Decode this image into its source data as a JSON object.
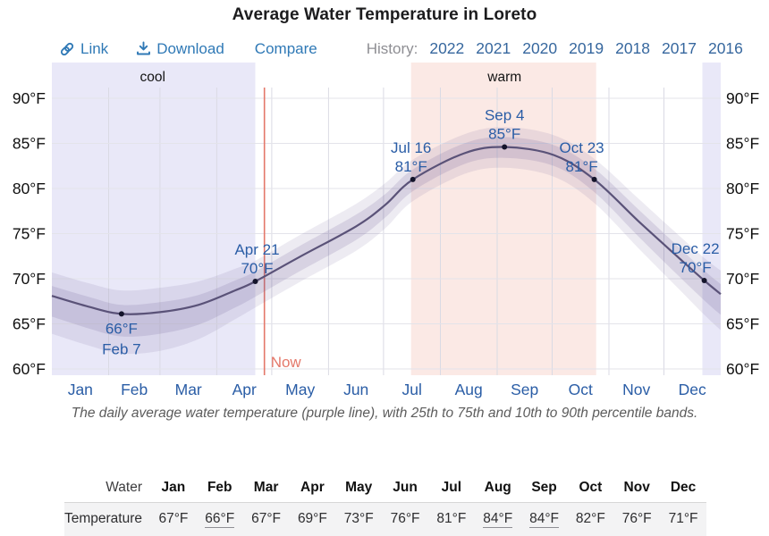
{
  "header": {
    "title": "Average Water Temperature in Loreto"
  },
  "toolbar": {
    "link": "Link",
    "download": "Download",
    "compare": "Compare",
    "history_label": "History:",
    "years": [
      "2022",
      "2021",
      "2020",
      "2019",
      "2018",
      "2017",
      "2016"
    ]
  },
  "chart_data": {
    "type": "line",
    "title": "Average Water Temperature in Loreto",
    "unit": "°F",
    "y_axis": {
      "min": 60,
      "max": 90,
      "step": 5,
      "tick_labels": [
        "90°F",
        "85°F",
        "80°F",
        "75°F",
        "70°F",
        "65°F",
        "60°F"
      ]
    },
    "x_axis": {
      "months": [
        "Jan",
        "Feb",
        "Mar",
        "Apr",
        "May",
        "Jun",
        "Jul",
        "Aug",
        "Sep",
        "Oct",
        "Nov",
        "Dec"
      ]
    },
    "monthly_mean_f": [
      67,
      66,
      67,
      69,
      73,
      76,
      81,
      84,
      84,
      82,
      76,
      71
    ],
    "regions": [
      {
        "kind": "cool",
        "start_day": 0,
        "end_day": 111
      },
      {
        "kind": "warm",
        "start_day": 196,
        "end_day": 297
      },
      {
        "kind": "cool",
        "start_day": 355,
        "end_day": 365
      }
    ],
    "region_labels": [
      {
        "text": "cool",
        "day": 55
      },
      {
        "text": "warm",
        "day": 247
      }
    ],
    "now_marker": {
      "label": "Now",
      "day": 116
    },
    "series": [
      {
        "name": "daily average water temperature",
        "points": [
          {
            "d": 0,
            "t": 68.1,
            "ih": 1.1,
            "il": 2.3,
            "oh": 2.6,
            "ol": 4.2
          },
          {
            "d": 20,
            "t": 66.9,
            "ih": 1.1,
            "il": 2.4,
            "oh": 2.6,
            "ol": 4.3
          },
          {
            "d": 38,
            "t": 66.1,
            "ih": 1.0,
            "il": 2.5,
            "oh": 2.6,
            "ol": 4.4
          },
          {
            "d": 59,
            "t": 66.3,
            "ih": 1.1,
            "il": 2.4,
            "oh": 2.7,
            "ol": 4.3
          },
          {
            "d": 80,
            "t": 67.1,
            "ih": 1.1,
            "il": 2.2,
            "oh": 2.6,
            "ol": 3.8
          },
          {
            "d": 100,
            "t": 68.7,
            "ih": 1.1,
            "il": 1.9,
            "oh": 2.4,
            "ol": 3.2
          },
          {
            "d": 111,
            "t": 69.7,
            "ih": 1.1,
            "il": 1.7,
            "oh": 2.3,
            "ol": 2.9
          },
          {
            "d": 135,
            "t": 72.4,
            "ih": 1.2,
            "il": 1.6,
            "oh": 2.4,
            "ol": 2.8
          },
          {
            "d": 166,
            "t": 75.8,
            "ih": 1.3,
            "il": 1.5,
            "oh": 2.5,
            "ol": 2.7
          },
          {
            "d": 182,
            "t": 78.2,
            "ih": 1.2,
            "il": 1.4,
            "oh": 2.4,
            "ol": 2.6
          },
          {
            "d": 197,
            "t": 81.0,
            "ih": 1.1,
            "il": 1.3,
            "oh": 2.2,
            "ol": 2.4
          },
          {
            "d": 225,
            "t": 83.9,
            "ih": 1.1,
            "il": 1.2,
            "oh": 2.1,
            "ol": 2.3
          },
          {
            "d": 247,
            "t": 84.6,
            "ih": 1.1,
            "il": 1.2,
            "oh": 2.2,
            "ol": 2.3
          },
          {
            "d": 274,
            "t": 83.7,
            "ih": 1.1,
            "il": 1.2,
            "oh": 2.2,
            "ol": 2.4
          },
          {
            "d": 296,
            "t": 81.0,
            "ih": 1.2,
            "il": 1.4,
            "oh": 2.3,
            "ol": 2.6
          },
          {
            "d": 320,
            "t": 76.4,
            "ih": 1.3,
            "il": 1.7,
            "oh": 2.5,
            "ol": 3.0
          },
          {
            "d": 340,
            "t": 72.7,
            "ih": 1.2,
            "il": 2.0,
            "oh": 2.5,
            "ol": 3.4
          },
          {
            "d": 356,
            "t": 69.8,
            "ih": 1.1,
            "il": 2.2,
            "oh": 2.5,
            "ol": 3.8
          },
          {
            "d": 365,
            "t": 68.3,
            "ih": 1.1,
            "il": 2.3,
            "oh": 2.6,
            "ol": 4.0
          }
        ]
      }
    ],
    "annotations": [
      {
        "date": "Feb 7",
        "value": "66°F",
        "lines": [
          "66°F",
          "Feb 7"
        ],
        "day": 38,
        "temp": 66.1,
        "placement": "below",
        "dx": 0
      },
      {
        "date": "Apr 21",
        "value": "70°F",
        "lines": [
          "Apr 21",
          "70°F"
        ],
        "day": 111,
        "temp": 69.7,
        "placement": "above",
        "dx": 2
      },
      {
        "date": "Jul 16",
        "value": "81°F",
        "lines": [
          "Jul 16",
          "81°F"
        ],
        "day": 197,
        "temp": 81.0,
        "placement": "above",
        "dx": -2
      },
      {
        "date": "Sep 4",
        "value": "85°F",
        "lines": [
          "Sep 4",
          "85°F"
        ],
        "day": 247,
        "temp": 84.6,
        "placement": "above",
        "dx": 0
      },
      {
        "date": "Oct 23",
        "value": "81°F",
        "lines": [
          "Oct 23",
          "81°F"
        ],
        "day": 296,
        "temp": 81.0,
        "placement": "above",
        "dx": -14
      },
      {
        "date": "Dec 22",
        "value": "70°F",
        "lines": [
          "Dec 22",
          "70°F"
        ],
        "day": 356,
        "temp": 69.8,
        "placement": "above",
        "dx": -10
      }
    ],
    "colors": {
      "accent_blue": "#2f79b6",
      "year_blue": "#36679e",
      "chart_label_blue": "#2a5da6",
      "cool_bg": "#e9e8f8",
      "warm_bg": "#fbe9e5",
      "line_purple": "#5a5278",
      "band_purple": "#6b5b95",
      "now_red": "#e4786a",
      "grid_v": "#dadae4",
      "grid_h": "#e3e3ea",
      "dot": "#14142b",
      "region_label": "#141414",
      "axis_text": "#0f0f0f"
    },
    "legend_position": "none",
    "grid": true
  },
  "caption": "The daily average water temperature (purple line), with 25th to 75th and 10th to 90th percentile bands.",
  "table": {
    "corner_label": "Water",
    "row_label": "Temperature",
    "months": [
      "Jan",
      "Feb",
      "Mar",
      "Apr",
      "May",
      "Jun",
      "Jul",
      "Aug",
      "Sep",
      "Oct",
      "Nov",
      "Dec"
    ],
    "values": [
      "67°F",
      "66°F",
      "67°F",
      "69°F",
      "73°F",
      "76°F",
      "81°F",
      "84°F",
      "84°F",
      "82°F",
      "76°F",
      "71°F"
    ],
    "underlined": [
      false,
      true,
      false,
      false,
      false,
      false,
      false,
      true,
      true,
      false,
      false,
      false
    ]
  }
}
